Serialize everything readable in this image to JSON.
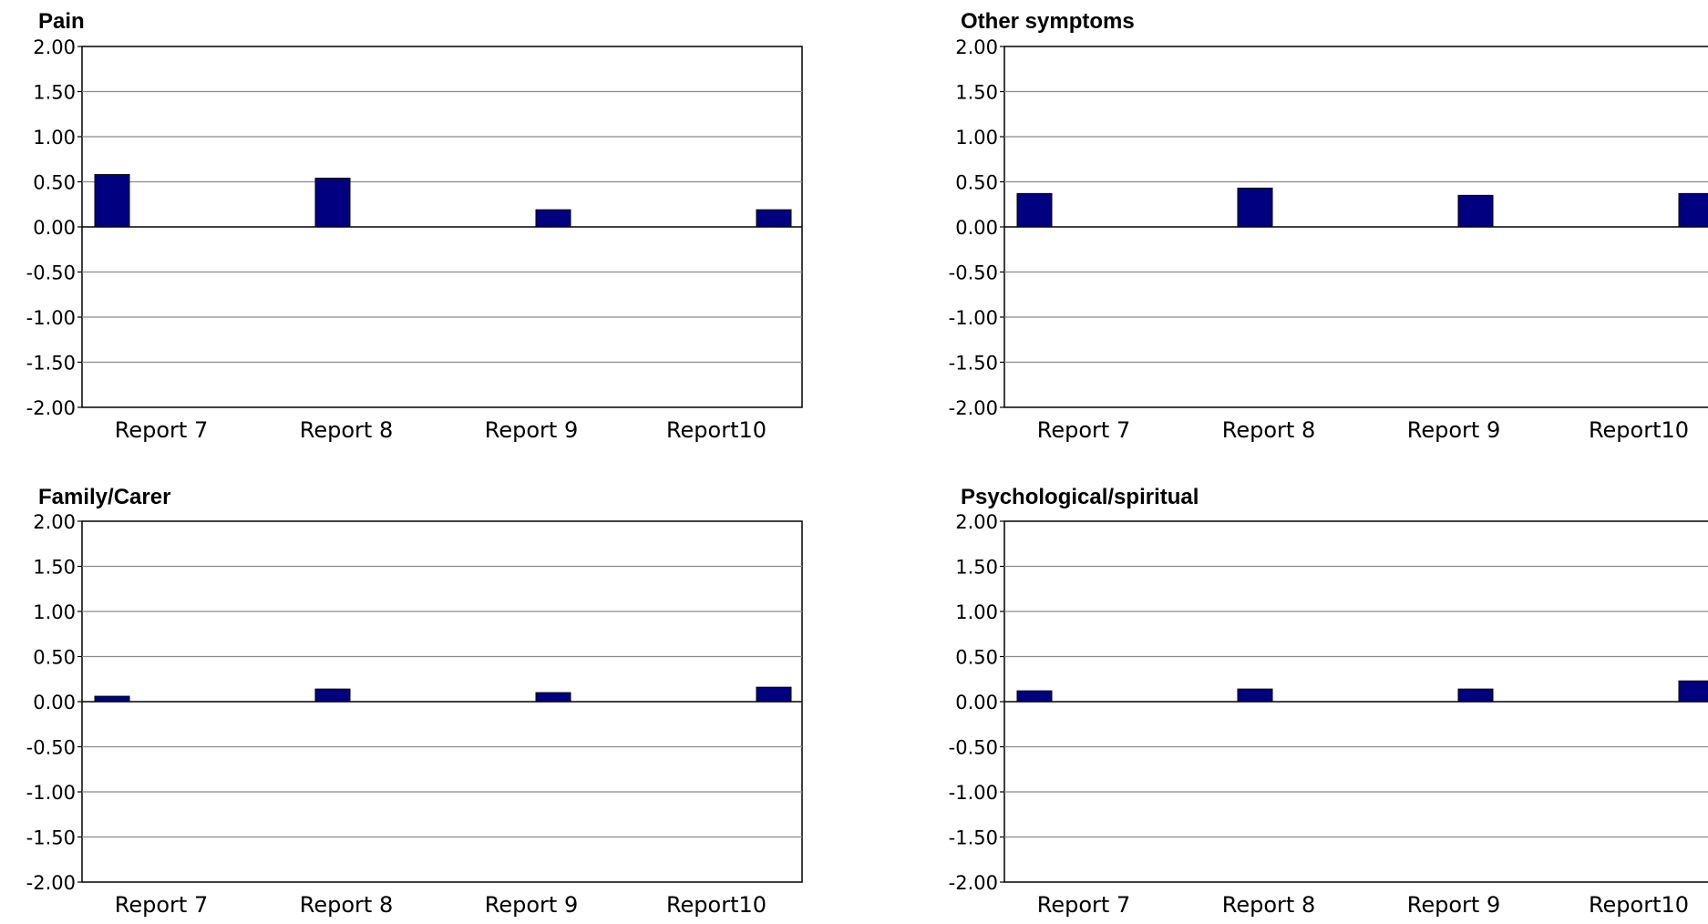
{
  "chart_data": [
    {
      "type": "bar",
      "title": "Pain",
      "categories": [
        "Report 7",
        "Report 8",
        "Report 9",
        "Report10"
      ],
      "values": [
        0.58,
        0.54,
        0.19,
        0.19
      ],
      "ylim": [
        -2.0,
        2.0
      ],
      "yticks": [
        "2.00",
        "1.50",
        "1.00",
        "0.50",
        "0.00",
        "-0.50",
        "-1.00",
        "-1.50",
        "-2.00"
      ],
      "grid": true,
      "bar_color": "#000080"
    },
    {
      "type": "bar",
      "title": "Other symptoms",
      "categories": [
        "Report 7",
        "Report 8",
        "Report 9",
        "Report10"
      ],
      "values": [
        0.37,
        0.43,
        0.35,
        0.37
      ],
      "ylim": [
        -2.0,
        2.0
      ],
      "yticks": [
        "2.00",
        "1.50",
        "1.00",
        "0.50",
        "0.00",
        "-0.50",
        "-1.00",
        "-1.50",
        "-2.00"
      ],
      "grid": true,
      "bar_color": "#000080"
    },
    {
      "type": "bar",
      "title": "Family/Carer",
      "categories": [
        "Report 7",
        "Report 8",
        "Report 9",
        "Report10"
      ],
      "values": [
        0.06,
        0.14,
        0.1,
        0.16
      ],
      "ylim": [
        -2.0,
        2.0
      ],
      "yticks": [
        "2.00",
        "1.50",
        "1.00",
        "0.50",
        "0.00",
        "-0.50",
        "-1.00",
        "-1.50",
        "-2.00"
      ],
      "grid": true,
      "bar_color": "#000080"
    },
    {
      "type": "bar",
      "title": "Psychological/spiritual",
      "categories": [
        "Report 7",
        "Report 8",
        "Report 9",
        "Report10"
      ],
      "values": [
        0.12,
        0.14,
        0.14,
        0.23
      ],
      "ylim": [
        -2.0,
        2.0
      ],
      "yticks": [
        "2.00",
        "1.50",
        "1.00",
        "0.50",
        "0.00",
        "-0.50",
        "-1.00",
        "-1.50",
        "-2.00"
      ],
      "grid": true,
      "bar_color": "#000080"
    }
  ]
}
